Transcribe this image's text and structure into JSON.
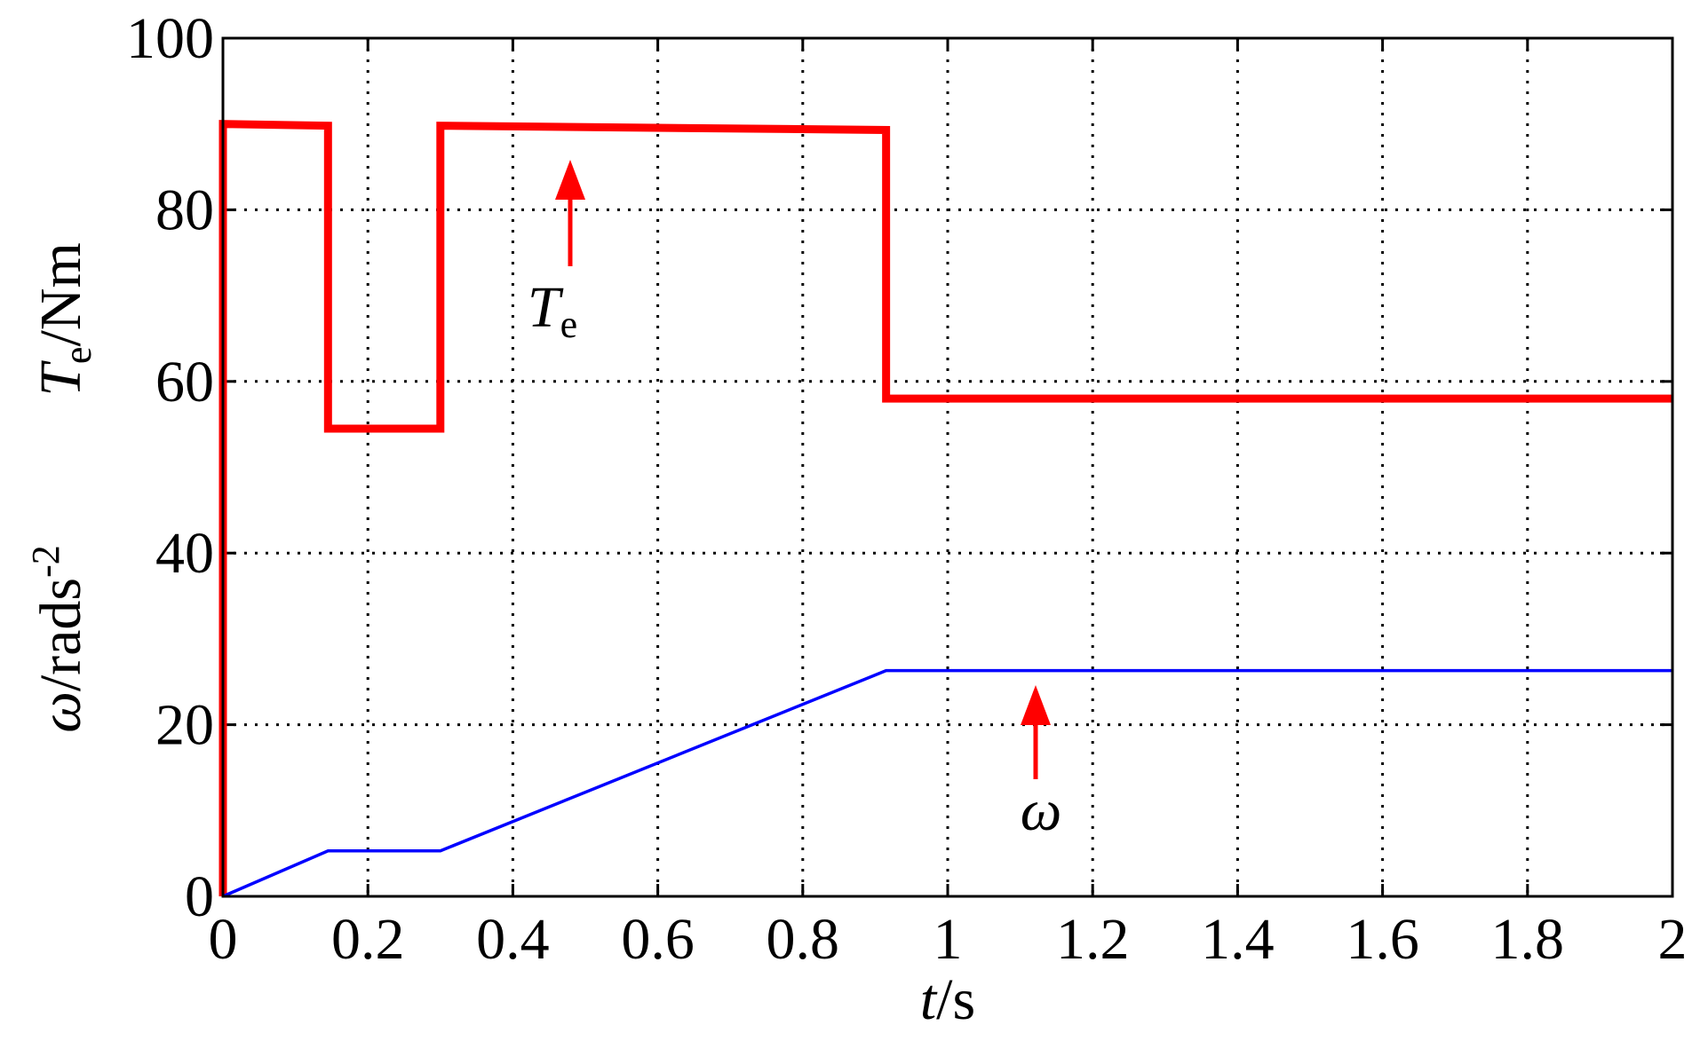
{
  "chart_data": {
    "type": "line",
    "x_label": {
      "symbol": "t",
      "unit": "/s"
    },
    "y_label_top": {
      "symbol": "T",
      "subscript": "e",
      "unit": "/Nm"
    },
    "y_label_bottom": {
      "symbol": "ω",
      "unit": "/rads",
      "superscript": "-2"
    },
    "series": [
      {
        "name": {
          "symbol": "T",
          "subscript": "e"
        },
        "color": "#ff0000",
        "width": "thick",
        "x": [
          0,
          0,
          0.145,
          0.145,
          0.3,
          0.3,
          0.915,
          0.915,
          2
        ],
        "values": [
          0,
          90,
          89.8,
          54.5,
          54.5,
          89.8,
          89.3,
          58,
          58
        ]
      },
      {
        "name": {
          "symbol": "ω"
        },
        "color": "#0000ff",
        "width": "thin",
        "x": [
          0,
          0.145,
          0.3,
          0.915,
          2
        ],
        "values": [
          0,
          5.3,
          5.3,
          26.3,
          26.3
        ]
      }
    ],
    "xlim": [
      0,
      2
    ],
    "xticks": [
      0,
      0.2,
      0.4,
      0.6,
      0.8,
      1,
      1.2,
      1.4,
      1.6,
      1.8,
      2
    ],
    "ylim": [
      0,
      100
    ],
    "yticks": [
      0,
      20,
      40,
      60,
      80,
      100
    ],
    "grid": true,
    "annotation_color": "#ff0000"
  }
}
